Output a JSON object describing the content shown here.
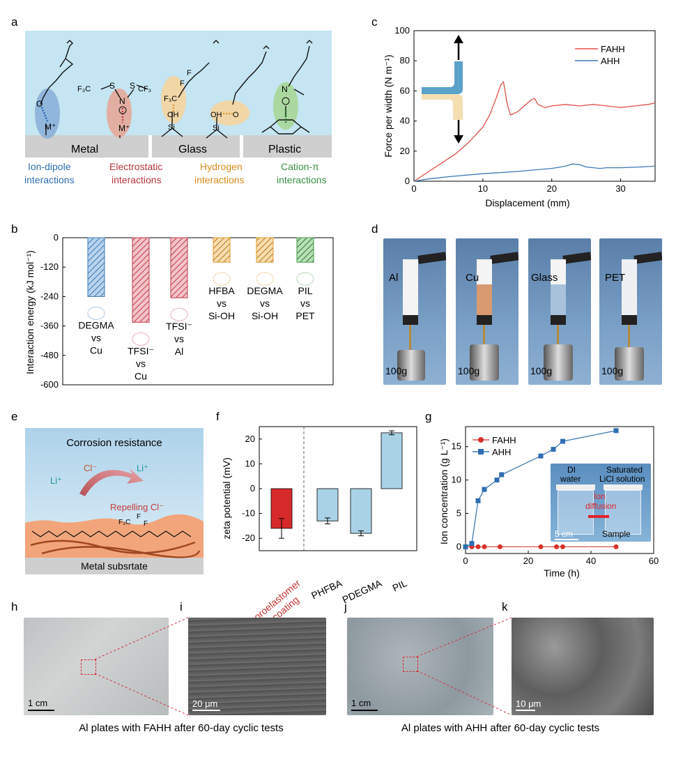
{
  "colors": {
    "bg_blue": "#c4e5f1",
    "substrate": "#cfcfcf",
    "ion_dipole": "#3b78b8",
    "electrostatic": "#c0394b",
    "hydrogen": "#e0992a",
    "cation_pi": "#3f9a4a",
    "fahh": "#e0504a",
    "ahh": "#3f77b4",
    "fluoro_bar": "#d62a2a",
    "zeta_bar": "#a9d2e6"
  },
  "panel_labels": [
    "a",
    "b",
    "c",
    "d",
    "e",
    "f",
    "g",
    "h",
    "i",
    "j",
    "k"
  ],
  "panel_a": {
    "substrates": [
      "Metal",
      "Glass",
      "Plastic"
    ],
    "interactions": [
      {
        "line1": "Ion-dipole",
        "line2": "interactions"
      },
      {
        "line1": "Electrostatic",
        "line2": "interactions"
      },
      {
        "line1": "Hydrogen",
        "line2": "interactions"
      },
      {
        "line1": "Cation-π",
        "line2": "interactions"
      }
    ],
    "chem": {
      "m1": "M⁺",
      "m2": "M⁺",
      "o_minus": "O",
      "n_minus": "N",
      "s": "S",
      "cf3": "F₃C",
      "cf3b": "CF₃",
      "o": "O",
      "oh": "OH",
      "si": "Si",
      "f3c": "F₃C",
      "f": "F",
      "n_plus": "N"
    }
  },
  "panel_b": {
    "ylabel": "Interaction energy (kJ mol⁻¹)",
    "yticks": [
      0,
      -120,
      -240,
      -360,
      -480,
      -600
    ],
    "ylim": [
      -600,
      0
    ],
    "bars": [
      {
        "value": -240,
        "color": "#3b78b8",
        "labels": [
          "DEGMA",
          "vs",
          "Cu"
        ]
      },
      {
        "value": -345,
        "color": "#c0394b",
        "labels": [
          "TFSI⁻",
          "vs",
          "Cu"
        ]
      },
      {
        "value": -245,
        "color": "#c0394b",
        "labels": [
          "TFSI⁻",
          "vs",
          "Al"
        ]
      },
      {
        "value": -100,
        "color": "#e0992a",
        "labels": [
          "HFBA",
          "vs",
          "Si-OH"
        ]
      },
      {
        "value": -100,
        "color": "#e0992a",
        "labels": [
          "DEGMA",
          "vs",
          "Si-OH"
        ]
      },
      {
        "value": -100,
        "color": "#3f9a4a",
        "labels": [
          "PIL",
          "vs",
          "PET"
        ]
      }
    ]
  },
  "chart_data": [
    {
      "type": "bar",
      "categories": [
        "DEGMA vs Cu",
        "TFSI⁻ vs Cu",
        "TFSI⁻ vs Al",
        "HFBA vs Si-OH",
        "DEGMA vs Si-OH",
        "PIL vs PET"
      ],
      "values": [
        -240,
        -345,
        -245,
        -100,
        -100,
        -100
      ],
      "ylabel": "Interaction energy (kJ mol⁻¹)",
      "ylim": [
        -600,
        0
      ]
    },
    {
      "type": "line",
      "xlabel": "Displacement (mm)",
      "ylabel": "Force per width (N m⁻¹)",
      "xlim": [
        0,
        35
      ],
      "ylim": [
        0,
        100
      ],
      "xticks": [
        0,
        10,
        20,
        30
      ],
      "yticks": [
        0,
        20,
        40,
        60,
        80,
        100
      ],
      "legend": "top-right",
      "series": [
        {
          "name": "FAHH",
          "x": [
            0,
            2,
            4,
            6,
            8,
            10,
            11,
            12,
            12.6,
            13,
            13.5,
            14,
            15,
            16,
            17,
            17.5,
            18,
            19,
            20,
            22,
            24,
            26,
            28,
            30,
            32,
            34,
            35
          ],
          "y": [
            0,
            6,
            12,
            18,
            26,
            36,
            44,
            56,
            64,
            66,
            52,
            44,
            46,
            50,
            54,
            55,
            51,
            49,
            50,
            51,
            50,
            51,
            50,
            49,
            50,
            51,
            52
          ]
        },
        {
          "name": "AHH",
          "x": [
            0,
            2,
            5,
            10,
            15,
            20,
            22,
            23,
            24,
            25,
            26,
            27,
            28,
            30,
            33,
            35
          ],
          "y": [
            0,
            1.5,
            3,
            5,
            6.5,
            8.5,
            10,
            11.5,
            11,
            9.5,
            9,
            8.5,
            9,
            9,
            9.5,
            10
          ]
        }
      ]
    },
    {
      "type": "bar",
      "categories": [
        "Fluoroelastomer coating",
        "PHFBA",
        "PDEGMA",
        "PIL"
      ],
      "values": [
        -16,
        -13,
        -18,
        22.5
      ],
      "errors": [
        4,
        1.2,
        1,
        0.8
      ],
      "ylabel": "zeta potential (mV)",
      "ylim": [
        -25,
        25
      ],
      "yticks": [
        -20,
        -10,
        0,
        10,
        20
      ]
    },
    {
      "type": "line",
      "xlabel": "Time (h)",
      "ylabel": "Ion concentration (g L⁻¹)",
      "xlim": [
        0,
        60
      ],
      "ylim": [
        0,
        18
      ],
      "xticks": [
        0,
        20,
        40,
        60
      ],
      "yticks": [
        0,
        5,
        10,
        15
      ],
      "legend": "top-left",
      "series": [
        {
          "name": "FAHH",
          "x": [
            0,
            2,
            4,
            6,
            11,
            24,
            29,
            31,
            48
          ],
          "y": [
            0,
            0,
            0,
            0,
            0,
            0,
            0,
            0,
            0
          ]
        },
        {
          "name": "AHH",
          "x": [
            0,
            2,
            4,
            6,
            10,
            11.5,
            24,
            28,
            31,
            48
          ],
          "y": [
            0,
            0.5,
            6.9,
            8.6,
            10,
            10.8,
            13.6,
            14.6,
            15.8,
            17.4
          ]
        }
      ]
    }
  ],
  "panel_c": {
    "xlabel": "Displacement (mm)",
    "ylabel": "Force per width (N m⁻¹)",
    "xticks": [
      0,
      10,
      20,
      30
    ],
    "yticks": [
      0,
      20,
      40,
      60,
      80,
      100
    ],
    "legend": [
      "FAHH",
      "AHH"
    ]
  },
  "panel_d": {
    "substrates": [
      "Al",
      "Cu",
      "Glass",
      "PET"
    ],
    "weight": "100g"
  },
  "panel_e": {
    "title": "Corrosion resistance",
    "cl": "Cl⁻",
    "li_left": "Li⁺",
    "li_right": "Li⁺",
    "repelling": "Repelling Cl⁻",
    "substrate": "Metal subsrtate",
    "f3c": "F₃C",
    "f": "F"
  },
  "panel_f": {
    "ylabel": "zeta potential (mV)",
    "yticks": [
      20,
      10,
      0,
      -10,
      -20
    ],
    "xlabels": [
      "Fluoroelastomer",
      "coating",
      "PHFBA",
      "PDEGMA",
      "PIL"
    ]
  },
  "panel_g": {
    "ylabel": "Ion concentration (g L⁻¹)",
    "xlabel": "Time (h)",
    "xticks": [
      0,
      20,
      40,
      60
    ],
    "yticks": [
      0,
      5,
      10,
      15
    ],
    "legend": [
      "FAHH",
      "AHH"
    ],
    "inset": {
      "di": "DI",
      "water": "water",
      "saturated": "Saturated",
      "licl": "LiCl solution",
      "ion": "Ion",
      "diffusion": "diffusion",
      "scale": "5 cm",
      "sample": "Sample"
    }
  },
  "panel_h": {
    "scale": "1 cm"
  },
  "panel_i": {
    "scale": "20 μm"
  },
  "panel_j": {
    "scale": "1 cm"
  },
  "panel_k": {
    "scale": "10 μm"
  },
  "captions": {
    "left": "Al plates with FAHH after 60-day cyclic tests",
    "right": "Al plates with AHH after 60-day cyclic tests"
  }
}
